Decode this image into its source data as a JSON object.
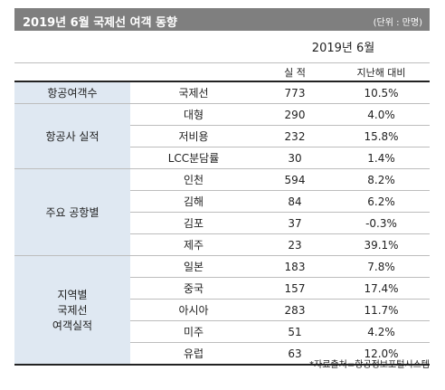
{
  "title": "2019년 6월 국제선 여객 동향",
  "unit": "(단위 : 만명)",
  "period_header": "2019년 6월",
  "col_actual": "실 적",
  "col_yoy": "지난해 대비",
  "groups": [
    {
      "label": "항공여객수",
      "rows": [
        {
          "item": "국제선",
          "value": "773",
          "change": "10.5%"
        }
      ]
    },
    {
      "label": "항공사 실적",
      "rows": [
        {
          "item": "대형",
          "value": "290",
          "change": "4.0%"
        },
        {
          "item": "저비용",
          "value": "232",
          "change": "15.8%"
        },
        {
          "item": "LCC분담률",
          "value": "30",
          "change": "1.4%"
        }
      ]
    },
    {
      "label": "주요 공항별",
      "rows": [
        {
          "item": "인천",
          "value": "594",
          "change": "8.2%"
        },
        {
          "item": "김해",
          "value": "84",
          "change": "6.2%"
        },
        {
          "item": "김포",
          "value": "37",
          "change": "-0.3%"
        },
        {
          "item": "제주",
          "value": "23",
          "change": "39.1%"
        }
      ]
    },
    {
      "label": "지역별\n국제선\n여객실적",
      "rows": [
        {
          "item": "일본",
          "value": "183",
          "change": "7.8%"
        },
        {
          "item": "중국",
          "value": "157",
          "change": "17.4%"
        },
        {
          "item": "아시아",
          "value": "283",
          "change": "11.7%"
        },
        {
          "item": "미주",
          "value": "51",
          "change": "4.2%"
        },
        {
          "item": "유럽",
          "value": "63",
          "change": "12.0%"
        }
      ]
    }
  ],
  "footnote": "*자료출처=항공정보포털시스템",
  "colors": {
    "title_bg": "#7f7f7f",
    "category_bg": "#dfe8f2"
  }
}
